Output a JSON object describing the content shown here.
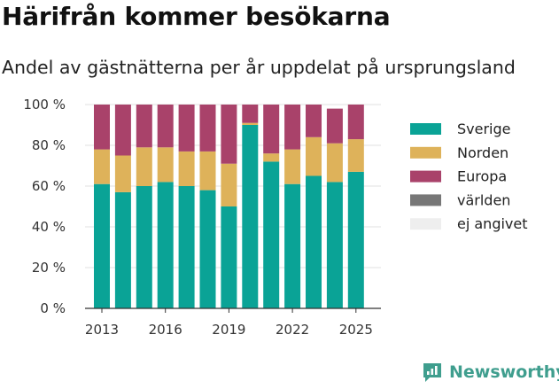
{
  "title": "Härifrån kommer besökarna",
  "subtitle": "Andel av gästnätterna per år uppdelat på ursprungsland",
  "brand": {
    "name": "Newsworthy",
    "icon": "newsworthy-logo-icon",
    "color": "#3f9e8e"
  },
  "chart_data": {
    "type": "bar",
    "stacked": true,
    "categories": [
      "2013",
      "2014",
      "2015",
      "2016",
      "2017",
      "2018",
      "2019",
      "2020",
      "2021",
      "2022",
      "2023",
      "2024",
      "2025"
    ],
    "x_tick_labels": [
      "2013",
      "2016",
      "2019",
      "2022",
      "2025"
    ],
    "y_tick_labels": [
      "0 %",
      "20 %",
      "40 %",
      "60 %",
      "80 %",
      "100 %"
    ],
    "ylim": [
      0,
      100
    ],
    "grid": true,
    "legend_position": "right",
    "series": [
      {
        "name": "Sverige",
        "color": "#0aa396",
        "values": [
          61,
          57,
          60,
          62,
          60,
          58,
          50,
          90,
          72,
          61,
          65,
          62,
          67
        ]
      },
      {
        "name": "Norden",
        "color": "#deb25a",
        "values": [
          17,
          18,
          19,
          17,
          17,
          19,
          21,
          1,
          4,
          17,
          19,
          19,
          16
        ]
      },
      {
        "name": "Europa",
        "color": "#a9426a",
        "values": [
          22,
          25,
          21,
          21,
          23,
          23,
          29,
          9,
          24,
          22,
          16,
          17,
          17
        ]
      },
      {
        "name": "världen",
        "color": "#777777",
        "values": [
          0,
          0,
          0,
          0,
          0,
          0,
          0,
          0,
          0,
          0,
          0,
          0,
          0
        ]
      },
      {
        "name": "ej angivet",
        "color": "#eeeeee",
        "values": [
          0,
          0,
          0,
          0,
          0,
          0,
          0,
          0,
          0,
          0,
          0,
          0,
          0
        ]
      }
    ]
  }
}
